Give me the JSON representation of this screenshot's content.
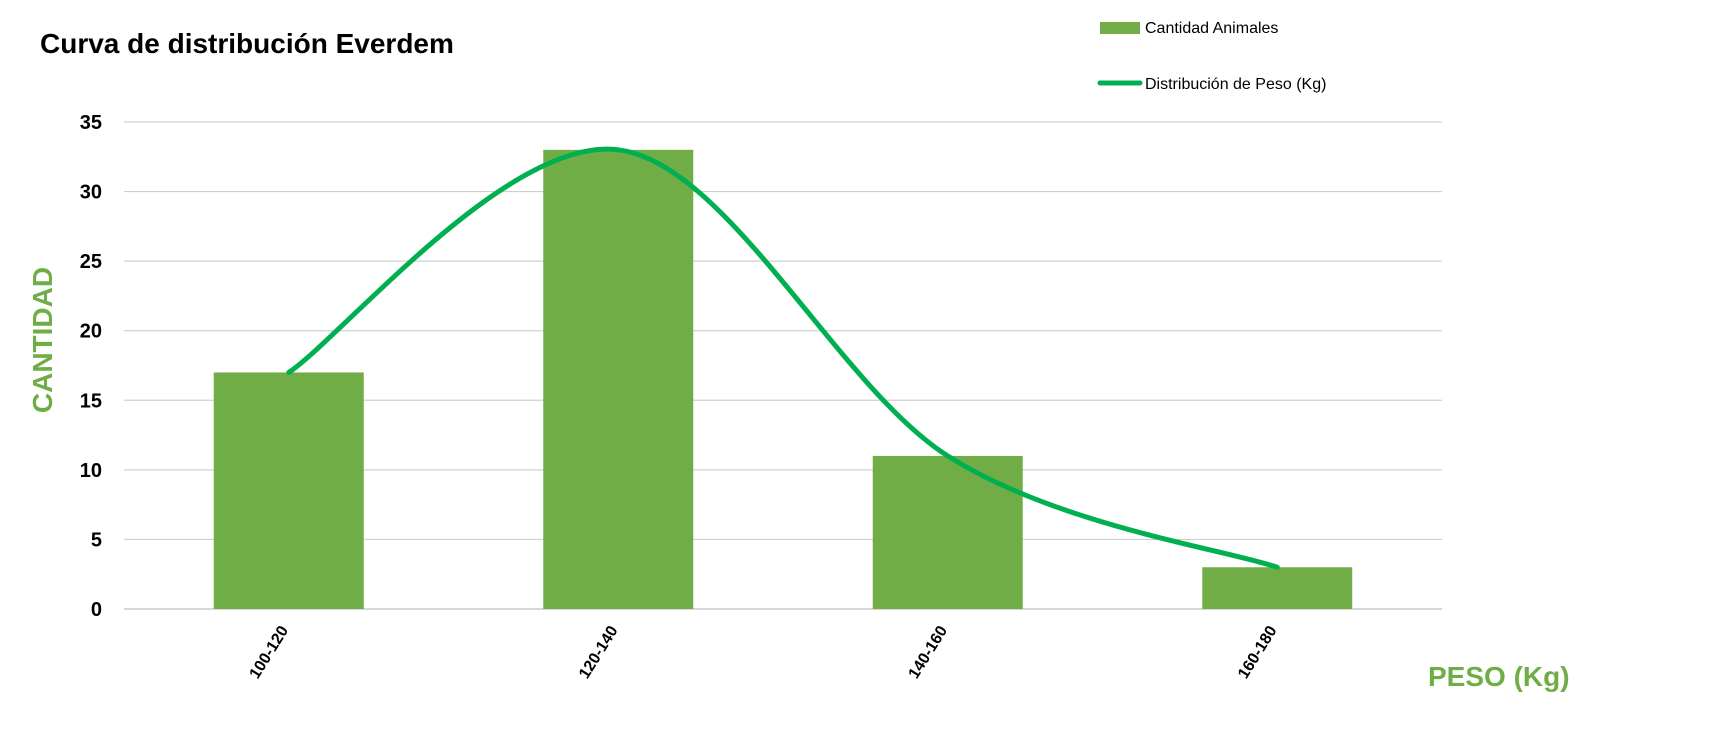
{
  "chart_data": {
    "type": "bar",
    "title": "Curva de distribución Everdem",
    "xlabel": "PESO (Kg)",
    "ylabel": "CANTIDAD",
    "categories": [
      "100-120",
      "120-140",
      "140-160",
      "160-180"
    ],
    "series": [
      {
        "name": "Cantidad Animales",
        "kind": "bar",
        "values": [
          17,
          33,
          11,
          3
        ]
      },
      {
        "name": "Distribución de Peso (Kg)",
        "kind": "line",
        "smooth": true,
        "values": [
          17,
          33,
          11,
          3
        ]
      }
    ],
    "ylim": [
      0,
      35
    ],
    "yticks": [
      "0",
      "5",
      "10",
      "15",
      "20",
      "25",
      "30",
      "35"
    ],
    "grid": true,
    "legend_position": "top-right"
  },
  "colors": {
    "bar": "#70ad47",
    "line": "#00b050",
    "axis_title": "#70ad47",
    "grid": "#d0d0d0"
  }
}
